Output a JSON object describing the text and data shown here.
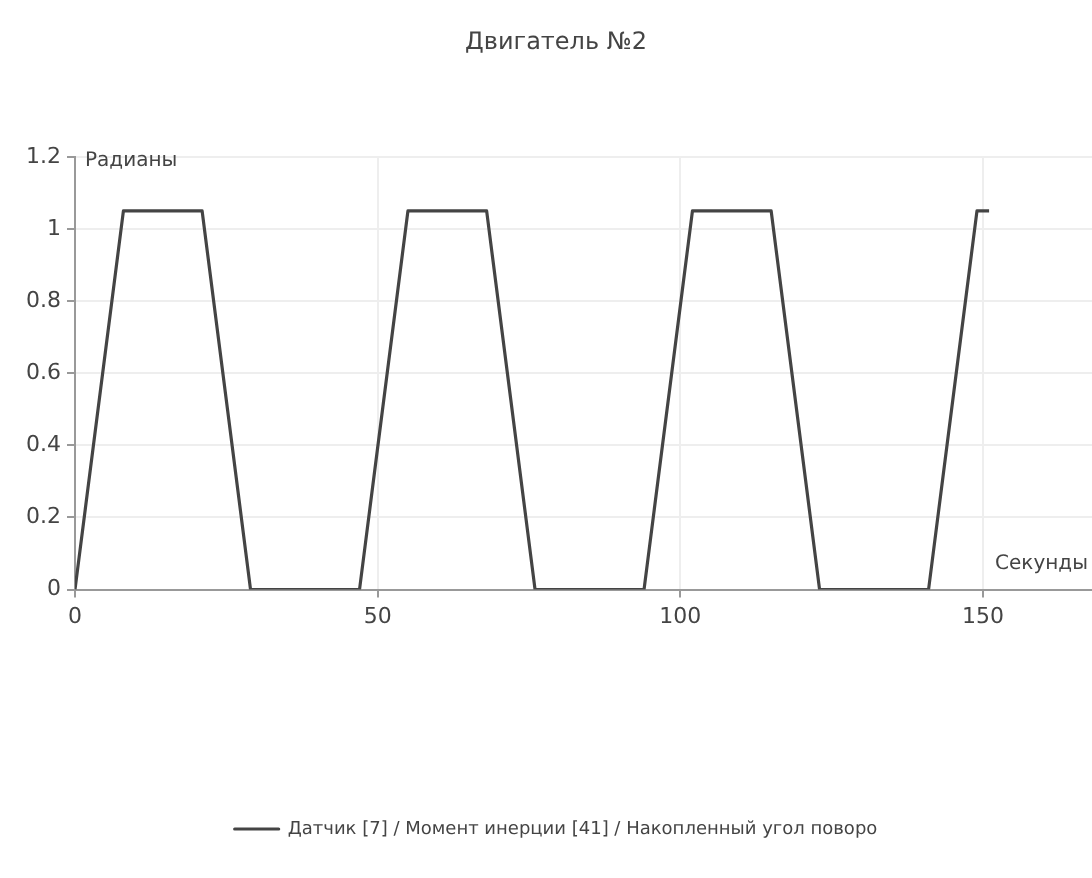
{
  "chart_data": {
    "type": "line",
    "title": "Двигатель №2",
    "xlabel": "Секунды",
    "ylabel": "Радианы",
    "x": [
      0,
      8,
      21,
      29,
      47,
      55,
      68,
      76,
      94,
      102,
      115,
      123,
      141,
      149,
      151
    ],
    "series": [
      {
        "name": "Датчик [7] / Момент инерции [41] / Накопленный угол поворо",
        "color": "#444444",
        "values": [
          0,
          1.05,
          1.05,
          0,
          0,
          1.05,
          1.05,
          0,
          0,
          1.05,
          1.05,
          0,
          0,
          1.05,
          1.05
        ]
      }
    ],
    "xlim": [
      0,
      168
    ],
    "xticks": [
      0,
      50,
      100,
      150
    ],
    "ylim": [
      0,
      1.2
    ],
    "yticks": [
      0,
      0.2,
      0.4,
      0.6,
      0.8,
      1,
      1.2
    ],
    "grid": true,
    "legend": "bottom",
    "marker": "none",
    "line_style": "solid"
  }
}
